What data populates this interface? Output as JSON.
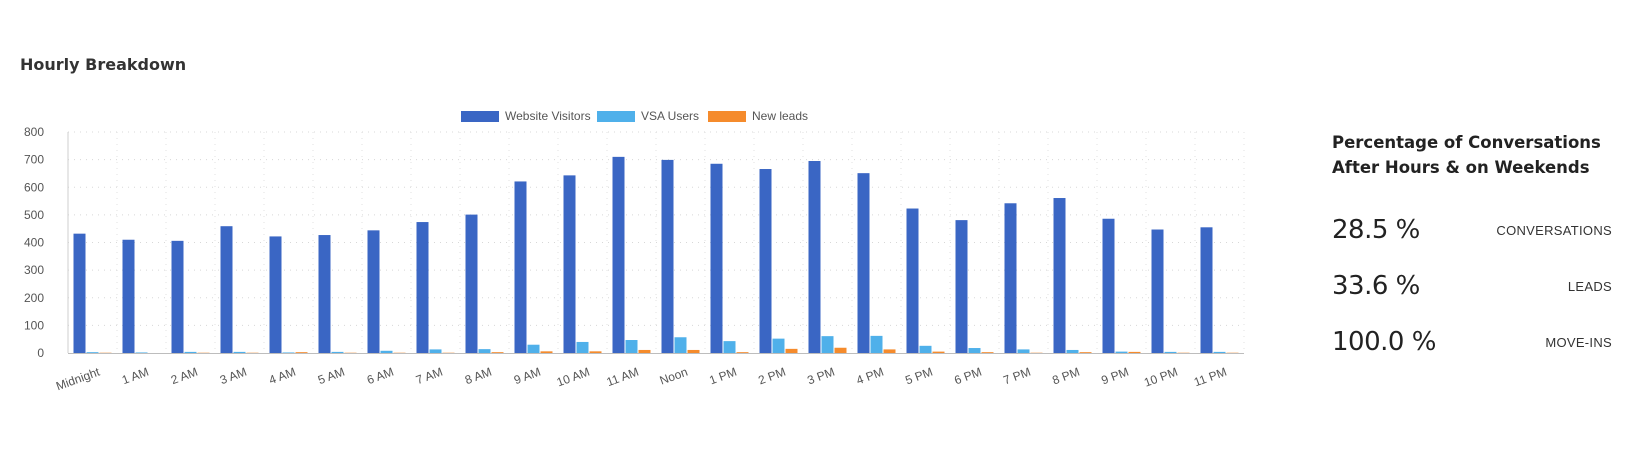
{
  "panel": {
    "title": "Hourly Breakdown"
  },
  "chart_data": {
    "type": "bar",
    "title": "",
    "xlabel": "",
    "ylabel": "",
    "ylim": [
      0,
      800
    ],
    "yticks": [
      "0",
      "100",
      "200",
      "300",
      "400",
      "500",
      "600",
      "700",
      "800"
    ],
    "grid": true,
    "legend_position": "top-center",
    "categories": [
      "Midnight",
      "1 AM",
      "2 AM",
      "3 AM",
      "4 AM",
      "5 AM",
      "6 AM",
      "7 AM",
      "8 AM",
      "9 AM",
      "10 AM",
      "11 AM",
      "Noon",
      "1 PM",
      "2 PM",
      "3 PM",
      "4 PM",
      "5 PM",
      "6 PM",
      "7 PM",
      "8 PM",
      "9 PM",
      "10 PM",
      "11 PM"
    ],
    "series": [
      {
        "name": "Website Visitors",
        "color": "#3a66c4",
        "values": [
          432,
          410,
          406,
          459,
          422,
          427,
          444,
          474,
          501,
          621,
          643,
          710,
          699,
          685,
          666,
          695,
          651,
          523,
          481,
          542,
          561,
          486,
          447,
          455
        ]
      },
      {
        "name": "VSA Users",
        "color": "#4fb0ea",
        "values": [
          3,
          2,
          4,
          4,
          2,
          4,
          8,
          13,
          14,
          30,
          40,
          47,
          57,
          43,
          52,
          61,
          62,
          26,
          18,
          13,
          11,
          5,
          4,
          4
        ]
      },
      {
        "name": "New leads",
        "color": "#f58b2c",
        "values": [
          1,
          0,
          1,
          1,
          3,
          1,
          1,
          1,
          3,
          6,
          6,
          11,
          11,
          3,
          15,
          19,
          13,
          5,
          3,
          1,
          3,
          4,
          1,
          1
        ]
      }
    ]
  },
  "stats": {
    "title_line1": "Percentage of Conversations",
    "title_line2": "After Hours & on Weekends",
    "rows": [
      {
        "value": "28.5 %",
        "label": "CONVERSATIONS"
      },
      {
        "value": "33.6 %",
        "label": "LEADS"
      },
      {
        "value": "100.0 %",
        "label": "MOVE-INS"
      }
    ]
  }
}
